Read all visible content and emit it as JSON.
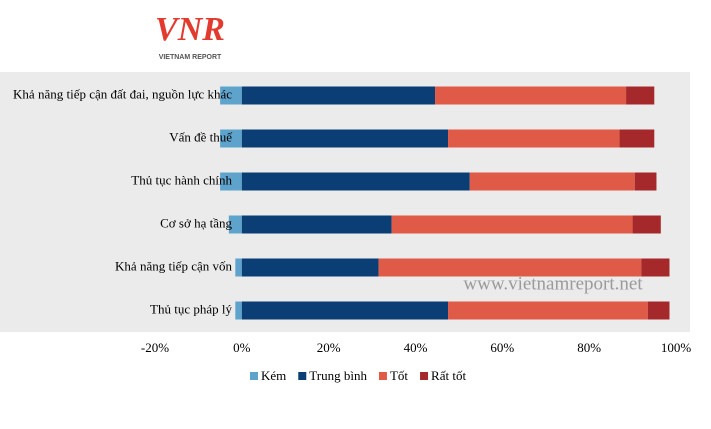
{
  "logo": {
    "mark": "VNR",
    "name": "VIETNAM REPORT"
  },
  "watermark": "www.vietnamreport.net",
  "chart_data": {
    "type": "bar",
    "orientation": "horizontal",
    "stacked": true,
    "categories": [
      "Khả năng tiếp cận đất đai, nguồn lực khác",
      "Vấn đề thuế",
      "Thủ tục hành chính",
      "Cơ sở hạ tầng",
      "Khả năng tiếp cận vốn",
      "Thủ tục pháp lý"
    ],
    "series": [
      {
        "name": "Kém",
        "color": "#5ea3cc",
        "values": [
          -5,
          -5,
          -5,
          -3,
          -1.5,
          -1.5
        ]
      },
      {
        "name": "Trung bình",
        "color": "#0b3e74",
        "values": [
          44.5,
          47.5,
          52.5,
          34.5,
          31.5,
          47.5
        ]
      },
      {
        "name": "Tốt",
        "color": "#e05a48",
        "values": [
          44,
          39.5,
          38,
          55.5,
          60.5,
          46
        ]
      },
      {
        "name": "Rất tốt",
        "color": "#a5282a",
        "values": [
          6.5,
          8,
          5,
          6.5,
          6.5,
          5
        ]
      }
    ],
    "xlim": [
      -20,
      100
    ],
    "xticks": [
      {
        "value": -20,
        "label": "-20%"
      },
      {
        "value": 0,
        "label": "0%"
      },
      {
        "value": 20,
        "label": "20%"
      },
      {
        "value": 40,
        "label": "40%"
      },
      {
        "value": 60,
        "label": "60%"
      },
      {
        "value": 80,
        "label": "80%"
      },
      {
        "value": 100,
        "label": "100%"
      }
    ],
    "legend": "bottom"
  }
}
